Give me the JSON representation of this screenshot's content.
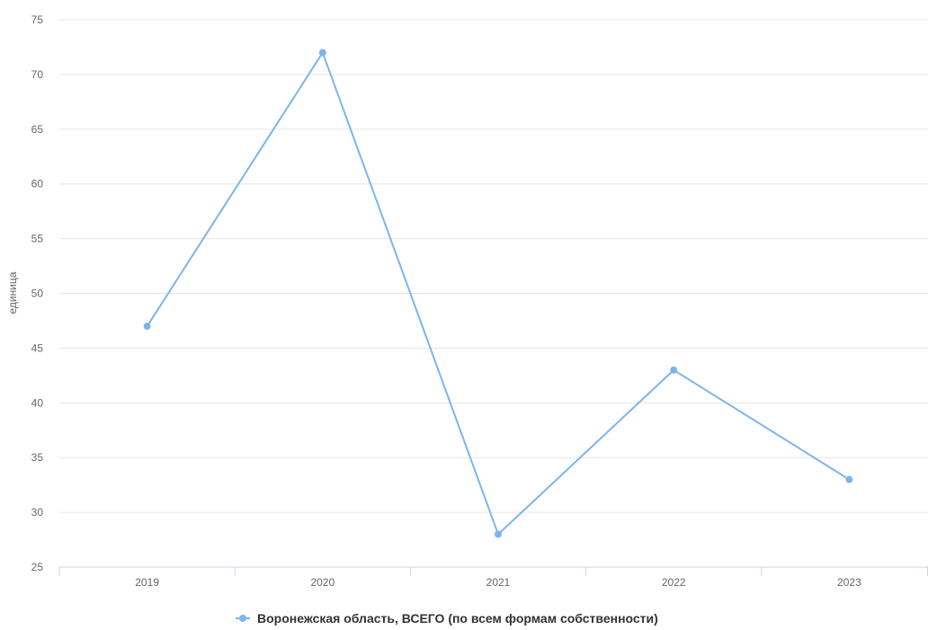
{
  "chart_data": {
    "type": "line",
    "title": "",
    "xlabel": "",
    "ylabel": "единица",
    "categories": [
      "2019",
      "2020",
      "2021",
      "2022",
      "2023"
    ],
    "series": [
      {
        "name": "Воронежская область, ВСЕГО (по всем формам собственности)",
        "values": [
          47,
          72,
          28,
          43,
          33
        ],
        "color": "#7cb5ec"
      }
    ],
    "ylim": [
      25,
      75
    ],
    "yticks": [
      "25",
      "30",
      "35",
      "40",
      "45",
      "50",
      "55",
      "60",
      "65",
      "70",
      "75"
    ],
    "grid": true,
    "legend": "bottom-center"
  }
}
